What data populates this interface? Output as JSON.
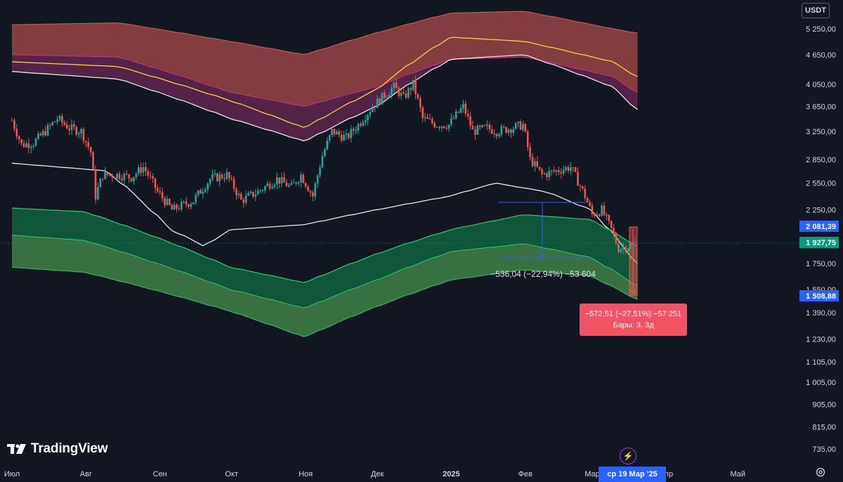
{
  "toolbar": {
    "currency": "USDT"
  },
  "logo": {
    "text": "TradingView"
  },
  "price_badges": {
    "upper": "2 081,39",
    "current": "1 927,75",
    "lower": "1 508,88"
  },
  "measure": {
    "text": "−536,04 (−22,94%) −53 604"
  },
  "tooltip": {
    "line1": "−572,51 (−27,51%) −57 251",
    "line2": "Бары: 3, 3д"
  },
  "date_badge": {
    "text": "ср 19 Мар '25"
  },
  "colors": {
    "background": "#131722",
    "up": "#26a69a",
    "down": "#ef5350",
    "upper_band": "#a94a4a",
    "lower_band": "#1f7a4d",
    "yellow_line": "#f7d046",
    "white_line": "#e6e6e6",
    "tooltip": "#f05363",
    "badge_blue": "#2962ff",
    "badge_green": "#089981"
  },
  "chart_data": {
    "type": "line",
    "title": "",
    "xlabel": "",
    "ylabel": "",
    "scale": "log",
    "y_ticks": [
      "5 250,00",
      "4 650,00",
      "4 050,00",
      "3 650,00",
      "3 250,00",
      "2 850,00",
      "2 550,00",
      "2 250,00",
      "1 750,00",
      "1 550,00",
      "1 390,00",
      "1 230,00",
      "1 105,00",
      "1 005,00",
      "905,00",
      "815,00",
      "735,00"
    ],
    "y_tick_values": [
      5250,
      4650,
      4050,
      3650,
      3250,
      2850,
      2550,
      2250,
      1750,
      1550,
      1390,
      1230,
      1105,
      1005,
      905,
      815,
      735
    ],
    "x_ticks": [
      "Июл",
      "Авг",
      "Сен",
      "Окт",
      "Ноя",
      "Дек",
      "2025",
      "Фев",
      "Мар",
      "Апр",
      "Май"
    ],
    "x_tick_dates": [
      "2024-07-01",
      "2024-08-01",
      "2024-09-01",
      "2024-10-01",
      "2024-11-01",
      "2024-12-01",
      "2025-01-01",
      "2025-02-01",
      "2025-03-01",
      "2025-04-01",
      "2025-05-01"
    ],
    "price_path": [
      [
        "2024-07-01",
        3420
      ],
      [
        "2024-07-05",
        3050
      ],
      [
        "2024-07-10",
        3080
      ],
      [
        "2024-07-15",
        3250
      ],
      [
        "2024-07-20",
        3450
      ],
      [
        "2024-07-25",
        3300
      ],
      [
        "2024-07-30",
        3250
      ],
      [
        "2024-08-03",
        2950
      ],
      [
        "2024-08-05",
        2400
      ],
      [
        "2024-08-08",
        2650
      ],
      [
        "2024-08-15",
        2650
      ],
      [
        "2024-08-20",
        2620
      ],
      [
        "2024-08-25",
        2750
      ],
      [
        "2024-08-31",
        2450
      ],
      [
        "2024-09-06",
        2250
      ],
      [
        "2024-09-15",
        2350
      ],
      [
        "2024-09-22",
        2600
      ],
      [
        "2024-09-29",
        2650
      ],
      [
        "2024-10-05",
        2350
      ],
      [
        "2024-10-12",
        2450
      ],
      [
        "2024-10-20",
        2600
      ],
      [
        "2024-10-26",
        2500
      ],
      [
        "2024-10-30",
        2650
      ],
      [
        "2024-11-04",
        2400
      ],
      [
        "2024-11-08",
        2900
      ],
      [
        "2024-11-12",
        3250
      ],
      [
        "2024-11-18",
        3150
      ],
      [
        "2024-11-23",
        3350
      ],
      [
        "2024-11-28",
        3600
      ],
      [
        "2024-12-04",
        3850
      ],
      [
        "2024-12-08",
        4000
      ],
      [
        "2024-12-12",
        3800
      ],
      [
        "2024-12-16",
        4050
      ],
      [
        "2024-12-20",
        3450
      ],
      [
        "2024-12-26",
        3350
      ],
      [
        "2024-12-31",
        3350
      ],
      [
        "2025-01-06",
        3650
      ],
      [
        "2025-01-10",
        3250
      ],
      [
        "2025-01-16",
        3300
      ],
      [
        "2025-01-20",
        3250
      ],
      [
        "2025-01-26",
        3300
      ],
      [
        "2025-01-31",
        3350
      ],
      [
        "2025-02-03",
        2850
      ],
      [
        "2025-02-08",
        2650
      ],
      [
        "2025-02-14",
        2700
      ],
      [
        "2025-02-20",
        2750
      ],
      [
        "2025-02-26",
        2400
      ],
      [
        "2025-03-01",
        2200
      ],
      [
        "2025-03-05",
        2250
      ],
      [
        "2025-03-09",
        2050
      ],
      [
        "2025-03-12",
        1880
      ],
      [
        "2025-03-16",
        1900
      ],
      [
        "2025-03-19",
        1927.75
      ]
    ],
    "series": [
      {
        "values": [
          [
            "2024-07-01",
            5350
          ],
          [
            "2024-08-15",
            5400
          ],
          [
            "2024-10-01",
            4950
          ],
          [
            "2024-11-01",
            4650
          ],
          [
            "2024-12-01",
            5150
          ],
          [
            "2025-01-01",
            5650
          ],
          [
            "2025-02-01",
            5700
          ],
          [
            "2025-03-10",
            5250
          ],
          [
            "2025-03-20",
            5150
          ]
        ]
      },
      {
        "values": [
          [
            "2024-07-01",
            4650
          ],
          [
            "2024-08-15",
            4600
          ],
          [
            "2024-10-01",
            3900
          ],
          [
            "2024-11-01",
            3650
          ],
          [
            "2024-12-01",
            4000
          ],
          [
            "2025-01-01",
            4550
          ],
          [
            "2025-02-01",
            4600
          ],
          [
            "2025-03-10",
            4200
          ],
          [
            "2025-03-20",
            3900
          ]
        ]
      },
      {
        "values": [
          [
            "2024-07-01",
            4500
          ],
          [
            "2024-08-15",
            4400
          ],
          [
            "2024-10-01",
            3750
          ],
          [
            "2024-11-01",
            3300
          ],
          [
            "2024-12-01",
            3950
          ],
          [
            "2025-01-01",
            5050
          ],
          [
            "2025-02-01",
            4950
          ],
          [
            "2025-03-10",
            4500
          ],
          [
            "2025-03-20",
            4200
          ]
        ]
      },
      {
        "values": [
          [
            "2024-07-01",
            4300
          ],
          [
            "2024-08-15",
            4150
          ],
          [
            "2024-10-01",
            3450
          ],
          [
            "2024-11-01",
            3100
          ],
          [
            "2024-12-01",
            3650
          ],
          [
            "2025-01-01",
            4550
          ],
          [
            "2025-02-01",
            4650
          ],
          [
            "2025-03-10",
            4000
          ],
          [
            "2025-03-20",
            3600
          ]
        ]
      },
      {
        "values": [
          [
            "2024-07-01",
            2800
          ],
          [
            "2024-08-10",
            2700
          ],
          [
            "2024-09-06",
            2050
          ],
          [
            "2024-09-20",
            1900
          ],
          [
            "2024-10-01",
            2050
          ],
          [
            "2024-11-01",
            2100
          ],
          [
            "2024-12-01",
            2250
          ],
          [
            "2025-01-01",
            2400
          ],
          [
            "2025-01-20",
            2550
          ],
          [
            "2025-02-10",
            2450
          ],
          [
            "2025-03-01",
            2250
          ],
          [
            "2025-03-20",
            1750
          ]
        ]
      },
      {
        "values": [
          [
            "2024-07-01",
            2270
          ],
          [
            "2024-08-01",
            2230
          ],
          [
            "2024-10-01",
            1720
          ],
          [
            "2024-11-01",
            1600
          ],
          [
            "2024-12-01",
            1830
          ],
          [
            "2025-01-01",
            2050
          ],
          [
            "2025-02-01",
            2200
          ],
          [
            "2025-03-01",
            2150
          ],
          [
            "2025-03-20",
            1900
          ]
        ]
      },
      {
        "values": [
          [
            "2024-07-01",
            2000
          ],
          [
            "2024-08-01",
            1950
          ],
          [
            "2024-10-01",
            1550
          ],
          [
            "2024-11-01",
            1420
          ],
          [
            "2024-12-01",
            1620
          ],
          [
            "2025-01-01",
            1850
          ],
          [
            "2025-02-01",
            1920
          ],
          [
            "2025-03-01",
            1800
          ],
          [
            "2025-03-20",
            1580
          ]
        ]
      },
      {
        "values": [
          [
            "2024-07-01",
            1720
          ],
          [
            "2024-08-01",
            1680
          ],
          [
            "2024-10-01",
            1400
          ],
          [
            "2024-11-01",
            1240
          ],
          [
            "2024-12-01",
            1430
          ],
          [
            "2025-01-01",
            1620
          ],
          [
            "2025-02-01",
            1700
          ],
          [
            "2025-03-01",
            1650
          ],
          [
            "2025-03-20",
            1480
          ]
        ]
      }
    ],
    "grid": false,
    "legend": "none"
  }
}
